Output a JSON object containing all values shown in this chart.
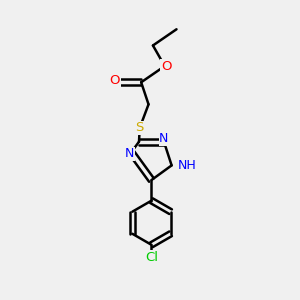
{
  "background_color": "#f0f0f0",
  "bond_color": "#000000",
  "atom_colors": {
    "O": "#ff0000",
    "N": "#0000ff",
    "S": "#ccaa00",
    "Cl": "#00cc00",
    "H": "#999999"
  },
  "figsize": [
    3.0,
    3.0
  ],
  "dpi": 100
}
